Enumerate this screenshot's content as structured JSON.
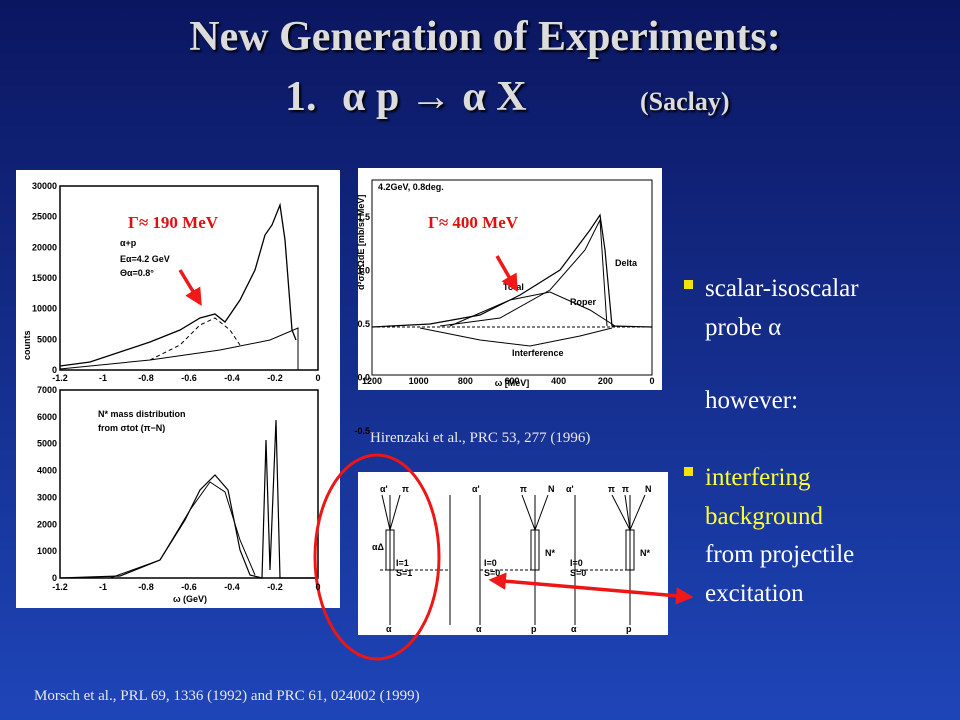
{
  "title": {
    "line1": "New Generation of Experiments:",
    "number": "1.",
    "reaction": "α p → α X",
    "lab": "(Saclay)"
  },
  "figures": {
    "top_left": {
      "annotation": "Γ≈ 190 MeV",
      "ylabel": "counts",
      "yticks": [
        "30000",
        "25000",
        "20000",
        "15000",
        "10000",
        "5000",
        "0"
      ],
      "xticks": [
        "-1.2",
        "-1",
        "-0.8",
        "-0.6",
        "-0.4",
        "-0.2",
        "0"
      ],
      "legend": [
        "α+p",
        "Eα=4.2 GeV",
        "Θα=0.8°"
      ]
    },
    "bottom_left": {
      "xlabel": "ω (GeV)",
      "yticks": [
        "7000",
        "6000",
        "5000",
        "4000",
        "3000",
        "2000",
        "1000",
        "0"
      ],
      "xticks": [
        "-1.2",
        "-1",
        "-0.8",
        "-0.6",
        "-0.4",
        "-0.2",
        "0"
      ],
      "legend": [
        "N* mass distribution",
        "from σtot (π−N)"
      ]
    },
    "top_right": {
      "annotation": "Γ≈ 400 MeV",
      "header": "4.2GeV, 0.8deg.",
      "ylabel": "d²σ/dΩdE [mb/sr MeV]",
      "xlabel": "ω [MeV]",
      "yticks": [
        "1.5",
        "1.0",
        "0.5",
        "0.0",
        "-0.5"
      ],
      "xticks": [
        "1200",
        "1000",
        "800",
        "600",
        "400",
        "200",
        "0"
      ],
      "curves": [
        "Total",
        "Delta",
        "Roper",
        "Interference"
      ]
    },
    "bottom_right": {
      "diagram1": [
        "α'",
        "π",
        "αΔ",
        "I=1",
        "S=1",
        "α"
      ],
      "diagram2": [
        "α'",
        "π",
        "N",
        "N*",
        "I=0",
        "S=0",
        "α",
        "p"
      ],
      "diagram3": [
        "α'",
        "π",
        "π",
        "N",
        "N*",
        "I=0",
        "S=0",
        "α",
        "p"
      ]
    }
  },
  "captions": {
    "hirenzaki": "Hirenzaki et al., PRC 53, 277 (1996)",
    "morsch": "Morsch et al., PRL 69, 1336 (1992) and PRC 61, 024002 (1999)"
  },
  "bullets": [
    {
      "lines": [
        "scalar-isoscalar",
        "probe α",
        "however:"
      ]
    },
    {
      "highlight": [
        "interfering",
        "background"
      ],
      "lines": [
        "from projectile",
        "excitation"
      ]
    }
  ]
}
